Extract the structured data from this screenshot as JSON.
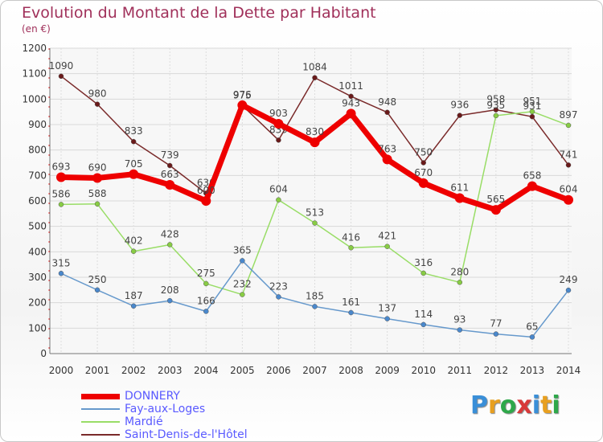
{
  "title": "Evolution du Montant de la Dette par Habitant",
  "unit": "(en €)",
  "logo": {
    "text": "Proxiti",
    "colors": [
      "#3a8fd8",
      "#e8a020",
      "#2ea84a",
      "#d83a3a",
      "#3a8fd8",
      "#e8a020",
      "#2ea84a"
    ]
  },
  "chart_data": {
    "type": "line",
    "x": [
      2000,
      2001,
      2002,
      2003,
      2004,
      2005,
      2006,
      2007,
      2008,
      2009,
      2010,
      2011,
      2012,
      2013,
      2014
    ],
    "ylim": [
      0,
      1200
    ],
    "yticks": [
      0,
      100,
      200,
      300,
      400,
      500,
      600,
      700,
      800,
      900,
      1000,
      1100,
      1200
    ],
    "grid": true,
    "legend": "bottom-left",
    "series": [
      {
        "name": "Saint-Denis-de-l'Hôtel",
        "color": "#7a2a2a",
        "marker": "#6a1a1a",
        "values": [
          1090,
          980,
          833,
          739,
          630,
          975,
          839,
          1084,
          1011,
          948,
          750,
          936,
          958,
          931,
          741
        ]
      },
      {
        "name": "Mardié",
        "color": "#99dd66",
        "marker": "#88cc44",
        "values": [
          586,
          588,
          402,
          428,
          275,
          232,
          604,
          513,
          416,
          421,
          316,
          280,
          935,
          951,
          897
        ]
      },
      {
        "name": "Fay-aux-Loges",
        "color": "#6699cc",
        "marker": "#4a88cc",
        "values": [
          315,
          250,
          187,
          208,
          166,
          365,
          223,
          185,
          161,
          137,
          114,
          93,
          77,
          65,
          249
        ]
      },
      {
        "name": "DONNERY",
        "color": "#ee0000",
        "marker": "#ee0000",
        "values": [
          693,
          690,
          705,
          663,
          600,
          976,
          903,
          830,
          943,
          763,
          670,
          611,
          565,
          658,
          604
        ]
      }
    ]
  }
}
